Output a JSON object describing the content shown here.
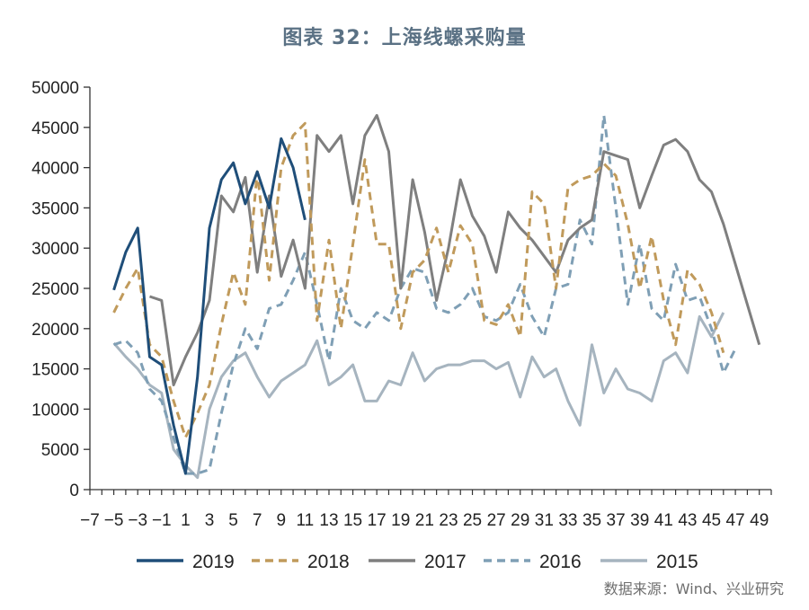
{
  "page": {
    "title": "图表 32：上海线螺采购量",
    "source": "数据来源：Wind、兴业研究"
  },
  "chart_data": {
    "type": "line",
    "title": "图表 32：上海线螺采购量",
    "xlabel": "",
    "ylabel": "",
    "xlim": [
      -7,
      50
    ],
    "ylim": [
      0,
      50000
    ],
    "xticks": [
      -7,
      -5,
      -3,
      -1,
      1,
      3,
      5,
      7,
      9,
      11,
      13,
      15,
      17,
      19,
      21,
      23,
      25,
      27,
      29,
      31,
      33,
      35,
      37,
      39,
      41,
      43,
      45,
      47,
      49
    ],
    "yticks": [
      0,
      5000,
      10000,
      15000,
      20000,
      25000,
      30000,
      35000,
      40000,
      45000,
      50000
    ],
    "legend_position": "bottom",
    "series": [
      {
        "name": "2019",
        "color": "#1f4e79",
        "dash": "solid",
        "x": [
          -5,
          -4,
          -3,
          -2,
          -1,
          0,
          1,
          2,
          3,
          4,
          5,
          6,
          7,
          8,
          9,
          10,
          11
        ],
        "y": [
          24800,
          29500,
          32500,
          16500,
          15500,
          8000,
          2000,
          14000,
          32500,
          38500,
          40600,
          35500,
          39500,
          35000,
          43600,
          40000,
          33500
        ]
      },
      {
        "name": "2018",
        "color": "#c09a5b",
        "dash": "dashed",
        "x": [
          -5,
          -4,
          -3,
          -2,
          -1,
          0,
          1,
          2,
          3,
          4,
          5,
          6,
          7,
          8,
          9,
          10,
          11,
          12,
          13,
          14,
          15,
          16,
          17,
          18,
          19,
          20,
          21,
          22,
          23,
          24,
          25,
          26,
          27,
          28,
          29,
          30,
          31,
          32,
          33,
          34,
          35,
          36,
          37,
          38,
          39,
          40,
          41,
          42,
          43,
          44,
          45,
          46
        ],
        "y": [
          22000,
          25000,
          27500,
          18000,
          16500,
          11000,
          6500,
          9500,
          13000,
          20500,
          27000,
          23000,
          39500,
          26000,
          40000,
          44000,
          45500,
          21000,
          31000,
          20000,
          30500,
          41000,
          30500,
          30500,
          20000,
          27000,
          28500,
          32500,
          27000,
          32800,
          30500,
          21000,
          20500,
          23000,
          19000,
          37000,
          35500,
          25000,
          37500,
          38500,
          39000,
          40500,
          39000,
          33000,
          25000,
          31500,
          23500,
          18000,
          27300,
          25500,
          22000,
          17000
        ]
      },
      {
        "name": "2017",
        "color": "#7f7f7f",
        "dash": "solid",
        "x": [
          -2,
          -1,
          0,
          1,
          2,
          3,
          4,
          5,
          6,
          7,
          8,
          9,
          10,
          11,
          12,
          13,
          14,
          15,
          16,
          17,
          18,
          19,
          20,
          21,
          22,
          23,
          24,
          25,
          26,
          27,
          28,
          29,
          30,
          31,
          32,
          33,
          34,
          35,
          36,
          37,
          38,
          39,
          40,
          41,
          42,
          43,
          44,
          45,
          46,
          47,
          48,
          49
        ],
        "y": [
          24000,
          23500,
          13000,
          16500,
          19500,
          23500,
          36500,
          34500,
          38800,
          27000,
          36500,
          26500,
          31000,
          25000,
          44000,
          42000,
          44000,
          35500,
          44000,
          46500,
          42000,
          25000,
          38500,
          32000,
          23500,
          30000,
          38500,
          34000,
          31500,
          27000,
          34500,
          32500,
          31000,
          29000,
          27000,
          31000,
          32500,
          33500,
          42000,
          41500,
          41000,
          35000,
          39000,
          42800,
          43500,
          42000,
          38500,
          37000,
          33000,
          28000,
          23000,
          18000
        ]
      },
      {
        "name": "2016",
        "color": "#7f9fb5",
        "dash": "dashed",
        "x": [
          -5,
          -4,
          -3,
          -2,
          -1,
          0,
          1,
          2,
          3,
          4,
          5,
          6,
          7,
          8,
          9,
          10,
          11,
          12,
          13,
          14,
          15,
          16,
          17,
          18,
          19,
          20,
          21,
          22,
          23,
          24,
          25,
          26,
          27,
          28,
          29,
          30,
          31,
          32,
          33,
          34,
          35,
          36,
          37,
          38,
          39,
          40,
          41,
          42,
          43,
          44,
          45,
          46,
          47
        ],
        "y": [
          18000,
          18500,
          17000,
          12500,
          11000,
          6500,
          2000,
          2000,
          2500,
          9500,
          15500,
          20000,
          17500,
          22500,
          23000,
          26000,
          29500,
          23000,
          16000,
          25000,
          21000,
          20000,
          22000,
          21000,
          25000,
          27500,
          27000,
          22500,
          22000,
          23000,
          25000,
          21500,
          21000,
          22000,
          25500,
          21500,
          19000,
          25000,
          25500,
          33500,
          30500,
          46500,
          35000,
          23000,
          30500,
          22500,
          21000,
          28000,
          23500,
          24000,
          20000,
          14500,
          17500
        ]
      },
      {
        "name": "2015",
        "color": "#a6b4bf",
        "dash": "solid",
        "x": [
          -5,
          -4,
          -3,
          -2,
          -1,
          0,
          1,
          2,
          3,
          4,
          5,
          6,
          7,
          8,
          9,
          10,
          11,
          12,
          13,
          14,
          15,
          16,
          17,
          18,
          19,
          20,
          21,
          22,
          23,
          24,
          25,
          26,
          27,
          28,
          29,
          30,
          31,
          32,
          33,
          34,
          35,
          36,
          37,
          38,
          39,
          40,
          41,
          42,
          43,
          44,
          45,
          46
        ],
        "y": [
          18200,
          16500,
          15000,
          13000,
          12000,
          5000,
          3000,
          1500,
          10000,
          14000,
          16000,
          17000,
          14000,
          11500,
          13500,
          14500,
          15500,
          18500,
          13000,
          14000,
          15500,
          11000,
          11000,
          13500,
          13000,
          17000,
          13500,
          15000,
          15500,
          15500,
          16000,
          16000,
          15000,
          15800,
          11500,
          16500,
          14000,
          15000,
          11000,
          8000,
          18000,
          12000,
          15000,
          12500,
          12000,
          11000,
          16000,
          17000,
          14500,
          21500,
          19000,
          22000
        ]
      }
    ]
  }
}
